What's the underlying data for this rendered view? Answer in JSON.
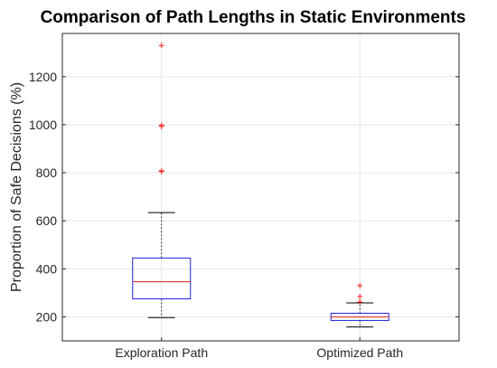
{
  "chart_data": {
    "type": "box",
    "title": "Comparison of Path Lengths in Static Environments",
    "xlabel": "",
    "ylabel": "Proportion of Safe Decisions (%)",
    "ylim": [
      100,
      1380
    ],
    "yticks": [
      200,
      400,
      600,
      800,
      1000,
      1200
    ],
    "grid": true,
    "categories": [
      "Exploration Path",
      "Optimized Path"
    ],
    "boxes": [
      {
        "category": "Exploration Path",
        "whisker_low": 197,
        "q1": 275,
        "median": 346,
        "q3": 445,
        "whisker_high": 634,
        "outliers": [
          805,
          808,
          993,
          998,
          1330
        ]
      },
      {
        "category": "Optimized Path",
        "whisker_low": 158,
        "q1": 185,
        "median": 200,
        "q3": 215,
        "whisker_high": 258,
        "outliers": [
          262,
          285,
          330
        ]
      }
    ],
    "colors": {
      "box": "#2020e0",
      "median": "#e02020",
      "outlier": "#ff2020",
      "whisker": "#000000",
      "grid": "#e6e6e6"
    }
  }
}
